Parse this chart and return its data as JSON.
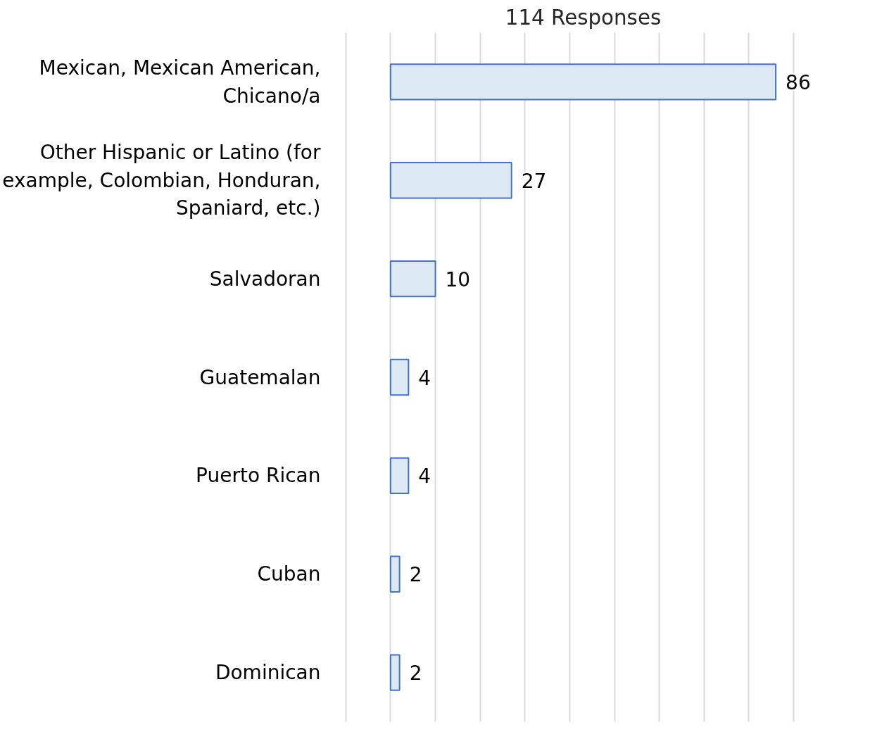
{
  "chart_data": {
    "type": "bar",
    "orientation": "horizontal",
    "title": "114 Responses",
    "categories": [
      "Mexican, Mexican American, Chicano/a",
      "Other Hispanic or Latino (for example, Colombian, Honduran, Spaniard, etc.)",
      "Salvadoran",
      "Guatemalan",
      "Puerto Rican",
      "Cuban",
      "Dominican"
    ],
    "values": [
      86,
      27,
      10,
      4,
      4,
      2,
      2
    ],
    "color": "#dde8f5",
    "data_labels": true,
    "grid": "x",
    "tick_labels": "y"
  }
}
